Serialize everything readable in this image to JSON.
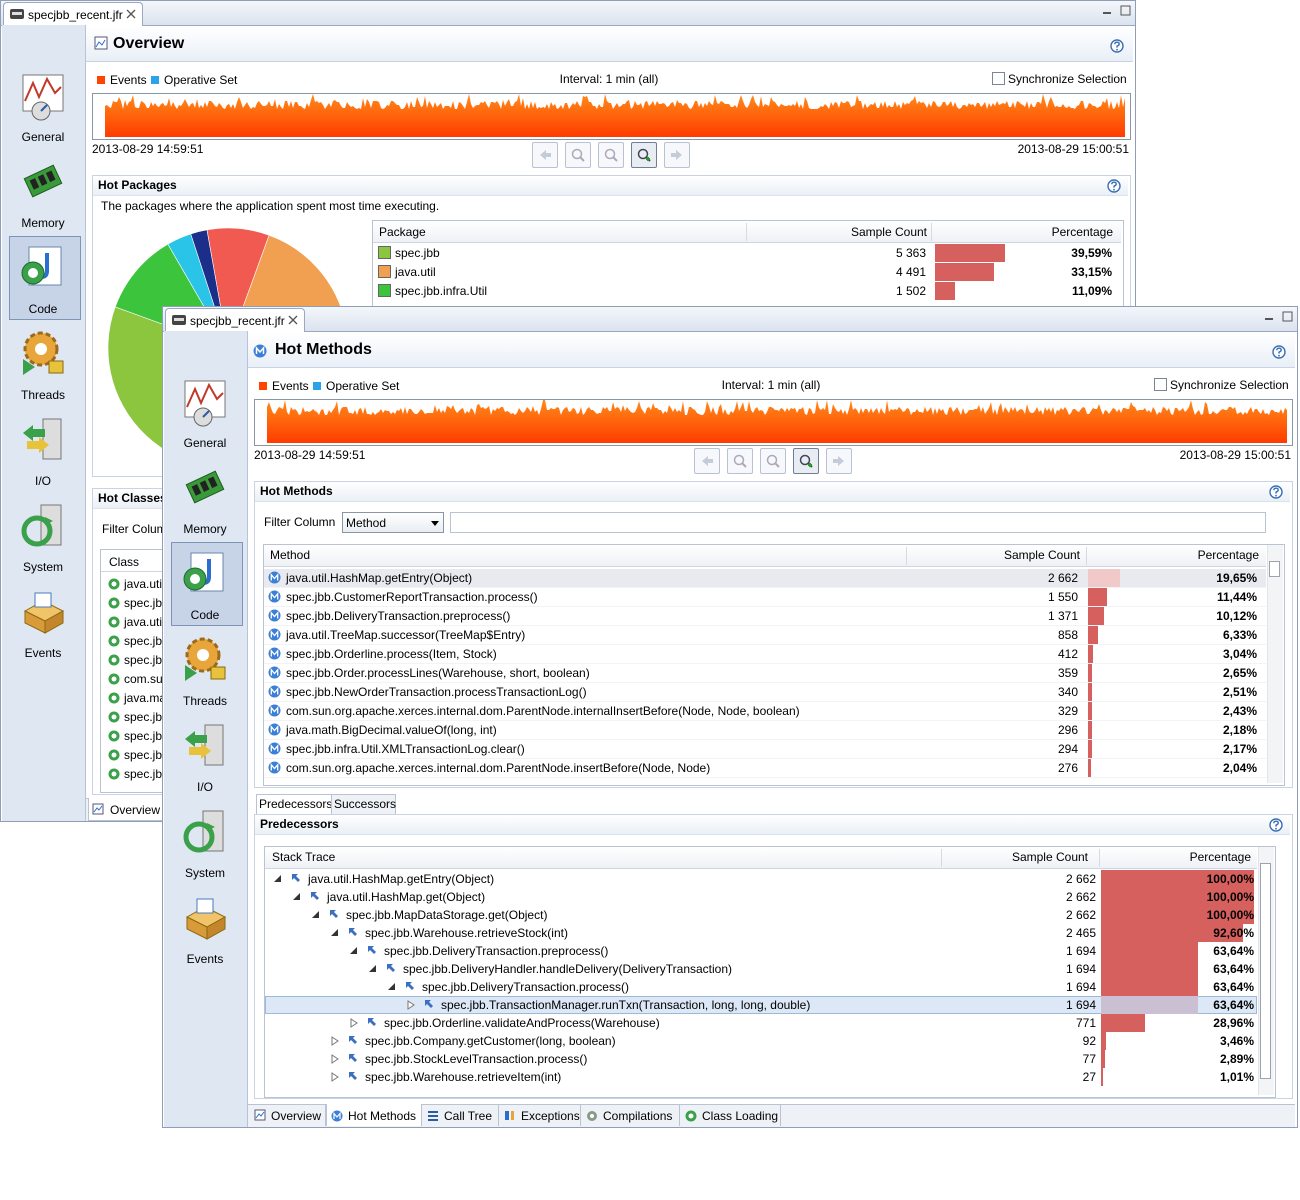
{
  "windows": [
    {
      "tab": "specjbb_recent.jfr",
      "nav": [
        "General",
        "Memory",
        "Code",
        "Threads",
        "I/O",
        "System",
        "Events"
      ],
      "title": "Overview",
      "legend": [
        "Events",
        "Operative Set"
      ],
      "interval": "Interval: 1 min (all)",
      "sync": "Synchronize Selection",
      "start": "2013-08-29 14:59:51",
      "end": "2013-08-29 15:00:51",
      "hot_packages": {
        "title": "Hot Packages",
        "description": "The packages where the application spent most time executing.",
        "columns": [
          "Package",
          "Sample Count",
          "Percentage"
        ],
        "rows": [
          {
            "name": "spec.jbb",
            "count": "5 363",
            "pct": "39,59%",
            "color": "#8cc63f"
          },
          {
            "name": "java.util",
            "count": "4 491",
            "pct": "33,15%",
            "color": "#f0a050"
          },
          {
            "name": "spec.jbb.infra.Util",
            "count": "1 502",
            "pct": "11,09%",
            "color": "#3cc43c"
          }
        ]
      },
      "hot_classes": {
        "title": "Hot Classes",
        "filter_label": "Filter Colum",
        "column": "Class",
        "rows": [
          "java.uti",
          "spec.jbl",
          "java.uti",
          "spec.jbl",
          "spec.jbl",
          "com.su",
          "java.ma",
          "spec.jbl",
          "spec.jbl",
          "spec.jbl",
          "spec.jbl"
        ]
      },
      "tabs": [
        "Overview"
      ]
    },
    {
      "tab": "specjbb_recent.jfr",
      "nav": [
        "General",
        "Memory",
        "Code",
        "Threads",
        "I/O",
        "System",
        "Events"
      ],
      "title": "Hot Methods",
      "legend": [
        "Events",
        "Operative Set"
      ],
      "interval": "Interval: 1 min (all)",
      "sync": "Synchronize Selection",
      "start": "2013-08-29 14:59:51",
      "end": "2013-08-29 15:00:51",
      "hot_methods": {
        "title": "Hot Methods",
        "filter_label": "Filter Column",
        "filter_value": "Method",
        "columns": [
          "Method",
          "Sample Count",
          "Percentage"
        ],
        "rows": [
          {
            "name": "java.util.HashMap.getEntry(Object)",
            "count": "2 662",
            "pct": "19,65%"
          },
          {
            "name": "spec.jbb.CustomerReportTransaction.process()",
            "count": "1 550",
            "pct": "11,44%"
          },
          {
            "name": "spec.jbb.DeliveryTransaction.preprocess()",
            "count": "1 371",
            "pct": "10,12%"
          },
          {
            "name": "java.util.TreeMap.successor(TreeMap$Entry)",
            "count": "858",
            "pct": "6,33%"
          },
          {
            "name": "spec.jbb.Orderline.process(Item, Stock)",
            "count": "412",
            "pct": "3,04%"
          },
          {
            "name": "spec.jbb.Order.processLines(Warehouse, short, boolean)",
            "count": "359",
            "pct": "2,65%"
          },
          {
            "name": "spec.jbb.NewOrderTransaction.processTransactionLog()",
            "count": "340",
            "pct": "2,51%"
          },
          {
            "name": "com.sun.org.apache.xerces.internal.dom.ParentNode.internalInsertBefore(Node, Node, boolean)",
            "count": "329",
            "pct": "2,43%"
          },
          {
            "name": "java.math.BigDecimal.valueOf(long, int)",
            "count": "296",
            "pct": "2,18%"
          },
          {
            "name": "spec.jbb.infra.Util.XMLTransactionLog.clear()",
            "count": "294",
            "pct": "2,17%"
          },
          {
            "name": "com.sun.org.apache.xerces.internal.dom.ParentNode.insertBefore(Node, Node)",
            "count": "276",
            "pct": "2,04%"
          }
        ]
      },
      "detail_tabs": [
        "Predecessors",
        "Successors"
      ],
      "predecessors": {
        "title": "Predecessors",
        "columns": [
          "Stack Trace",
          "Sample Count",
          "Percentage"
        ],
        "tree": [
          {
            "label": "java.util.HashMap.getEntry(Object)",
            "count": "2 662",
            "pct": "100,00%",
            "children": [
              {
                "label": "java.util.HashMap.get(Object)",
                "count": "2 662",
                "pct": "100,00%",
                "children": [
                  {
                    "label": "spec.jbb.MapDataStorage.get(Object)",
                    "count": "2 662",
                    "pct": "100,00%",
                    "children": [
                      {
                        "label": "spec.jbb.Warehouse.retrieveStock(int)",
                        "count": "2 465",
                        "pct": "92,60%",
                        "children": [
                          {
                            "label": "spec.jbb.DeliveryTransaction.preprocess()",
                            "count": "1 694",
                            "pct": "63,64%",
                            "children": [
                              {
                                "label": "spec.jbb.DeliveryHandler.handleDelivery(DeliveryTransaction)",
                                "count": "1 694",
                                "pct": "63,64%",
                                "children": [
                                  {
                                    "label": "spec.jbb.DeliveryTransaction.process()",
                                    "count": "1 694",
                                    "pct": "63,64%",
                                    "children": [
                                      {
                                        "label": "spec.jbb.TransactionManager.runTxn(Transaction, long, long, double)",
                                        "count": "1 694",
                                        "pct": "63,64%",
                                        "children": []
                                      }
                                    ]
                                  }
                                ]
                              }
                            ]
                          },
                          {
                            "label": "spec.jbb.Orderline.validateAndProcess(Warehouse)",
                            "count": "771",
                            "pct": "28,96%",
                            "children": []
                          }
                        ]
                      },
                      {
                        "label": "spec.jbb.Company.getCustomer(long, boolean)",
                        "count": "92",
                        "pct": "3,46%",
                        "children": []
                      },
                      {
                        "label": "spec.jbb.StockLevelTransaction.process()",
                        "count": "77",
                        "pct": "2,89%",
                        "children": []
                      },
                      {
                        "label": "spec.jbb.Warehouse.retrieveItem(int)",
                        "count": "27",
                        "pct": "1,01%",
                        "children": []
                      }
                    ]
                  }
                ]
              }
            ]
          }
        ]
      },
      "tabs": [
        "Overview",
        "Hot Methods",
        "Call Tree",
        "Exceptions",
        "Compilations",
        "Class Loading"
      ]
    }
  ]
}
